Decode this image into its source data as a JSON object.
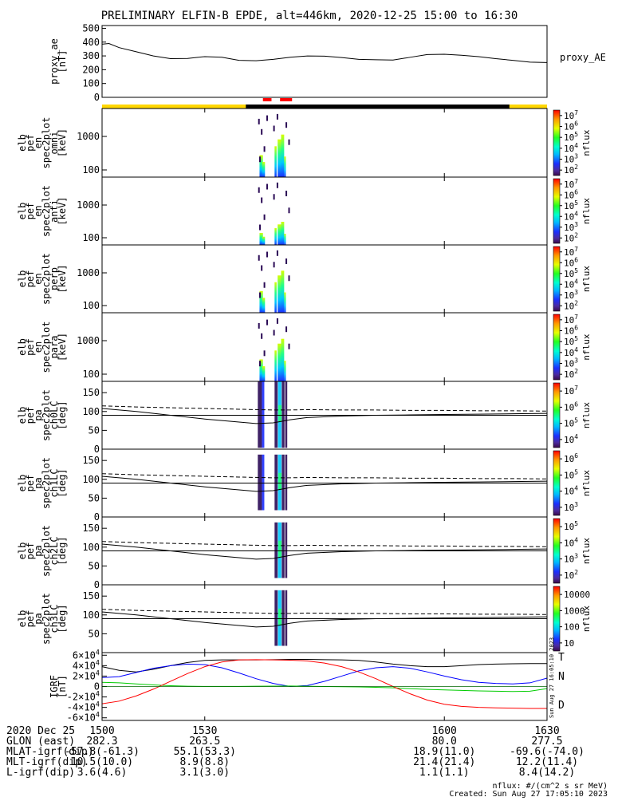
{
  "title": "PRELIMINARY ELFIN-B EPDE, alt=446km, 2020-12-25 15:00 to 16:30",
  "chart_data": [
    {
      "type": "line",
      "ylabel": [
        "proxy_ae",
        "[nT]"
      ],
      "yticks": [
        0,
        100,
        200,
        300,
        400,
        500
      ],
      "ylim": [
        0,
        520
      ],
      "series": [
        {
          "name": "proxy_AE",
          "x": [
            1500,
            1502,
            1505,
            1510,
            1515,
            1520,
            1525,
            1530,
            1535,
            1540,
            1545,
            1550,
            1555,
            1560,
            1565,
            1570,
            1575,
            1580,
            1585,
            1590,
            1595,
            1600,
            1605,
            1610,
            1615,
            1620,
            1625,
            1630
          ],
          "values": [
            385,
            390,
            360,
            330,
            300,
            280,
            282,
            295,
            290,
            268,
            265,
            275,
            290,
            300,
            298,
            288,
            275,
            272,
            270,
            290,
            310,
            312,
            305,
            295,
            280,
            268,
            255,
            252
          ]
        }
      ]
    },
    {
      "type": "heatmap",
      "ylabel": [
        "elb",
        "pef",
        "en",
        "spec2plot",
        "omni",
        "[keV]"
      ],
      "yticks": [
        "100",
        "1000"
      ],
      "colorbar": {
        "label": "nflux",
        "ticks": [
          "10^2",
          "10^3",
          "10^4",
          "10^5",
          "10^6",
          "10^7"
        ]
      }
    },
    {
      "type": "heatmap",
      "ylabel": [
        "elb",
        "pef",
        "en",
        "spec2plot",
        "anti",
        "[keV]"
      ],
      "yticks": [
        "100",
        "1000"
      ],
      "colorbar": {
        "label": "nflux",
        "ticks": [
          "10^2",
          "10^3",
          "10^4",
          "10^5",
          "10^6",
          "10^7"
        ]
      }
    },
    {
      "type": "heatmap",
      "ylabel": [
        "elb",
        "pef",
        "en",
        "spec2plot",
        "perp",
        "[keV]"
      ],
      "yticks": [
        "100",
        "1000"
      ],
      "colorbar": {
        "label": "nflux",
        "ticks": [
          "10^2",
          "10^3",
          "10^4",
          "10^5",
          "10^6",
          "10^7"
        ]
      }
    },
    {
      "type": "heatmap",
      "ylabel": [
        "elb",
        "pef",
        "en",
        "spec2plot",
        "para",
        "[keV]"
      ],
      "yticks": [
        "100",
        "1000"
      ],
      "colorbar": {
        "label": "nflux",
        "ticks": [
          "10^2",
          "10^3",
          "10^4",
          "10^5",
          "10^6",
          "10^7"
        ]
      }
    },
    {
      "type": "heatmap",
      "ylabel": [
        "elb",
        "pef",
        "pa",
        "spec2plot",
        "ch0LC",
        "[deg]"
      ],
      "yticks": [
        0,
        50,
        100,
        150
      ],
      "colorbar": {
        "label": "nflux",
        "ticks": [
          "10^4",
          "10^5",
          "10^6",
          "10^7"
        ]
      }
    },
    {
      "type": "heatmap",
      "ylabel": [
        "elb",
        "pef",
        "pa",
        "spec2plot",
        "ch1LC",
        "[deg]"
      ],
      "yticks": [
        0,
        50,
        100,
        150
      ],
      "colorbar": {
        "label": "nflux",
        "ticks": [
          "10^3",
          "10^4",
          "10^5",
          "10^6"
        ]
      }
    },
    {
      "type": "heatmap",
      "ylabel": [
        "elb",
        "pef",
        "pa",
        "spec2plot",
        "ch2LC",
        "[deg]"
      ],
      "yticks": [
        0,
        50,
        100,
        150
      ],
      "colorbar": {
        "label": "nflux",
        "ticks": [
          "10^2",
          "10^3",
          "10^4",
          "10^5"
        ]
      }
    },
    {
      "type": "heatmap",
      "ylabel": [
        "elb",
        "pef",
        "pa",
        "spec2plot",
        "ch3LC",
        "[deg]"
      ],
      "yticks": [
        50,
        100,
        150
      ],
      "colorbar": {
        "label": "nflux",
        "ticks": [
          "10",
          "100",
          "1000",
          "10000"
        ]
      }
    },
    {
      "type": "line",
      "ylabel": [
        "IGRF",
        "[nT]"
      ],
      "yticks": [
        "-6×10^4",
        "-4×10^4",
        "-2×10^4",
        "0",
        "2×10^4",
        "4×10^4",
        "6×10^4"
      ],
      "ylim": [
        -65000,
        65000
      ],
      "series": [
        {
          "name": "T",
          "color": "#000000",
          "x": [
            1500,
            1505,
            1510,
            1515,
            1520,
            1525,
            1530,
            1535,
            1540,
            1545,
            1550,
            1555,
            1560,
            1565,
            1570,
            1575,
            1580,
            1585,
            1590,
            1595,
            1600,
            1605,
            1610,
            1615,
            1620,
            1625,
            1630
          ],
          "values": [
            38000,
            31000,
            28000,
            33000,
            40000,
            46000,
            50000,
            51000,
            51000,
            51000,
            51500,
            52000,
            52000,
            51500,
            51000,
            50000,
            47000,
            43000,
            40000,
            38000,
            38000,
            40000,
            42000,
            43000,
            43500,
            44000,
            44000
          ]
        },
        {
          "name": "N",
          "color": "#0000ff",
          "x": [
            1500,
            1505,
            1510,
            1515,
            1520,
            1525,
            1530,
            1535,
            1540,
            1545,
            1550,
            1555,
            1560,
            1565,
            1570,
            1575,
            1580,
            1585,
            1590,
            1595,
            1600,
            1605,
            1610,
            1615,
            1620,
            1625,
            1630
          ],
          "values": [
            17000,
            19000,
            27000,
            35000,
            40000,
            43000,
            42000,
            36000,
            26000,
            15000,
            6000,
            0,
            2000,
            10000,
            20000,
            30000,
            36000,
            38000,
            35000,
            28000,
            20000,
            13000,
            8000,
            6000,
            5000,
            7000,
            16000
          ]
        },
        {
          "name": "",
          "color": "#00cc00",
          "x": [
            1500,
            1505,
            1510,
            1515,
            1520,
            1525,
            1530,
            1535,
            1540,
            1545,
            1550,
            1555,
            1560,
            1565,
            1570,
            1575,
            1580,
            1585,
            1590,
            1595,
            1600,
            1605,
            1610,
            1615,
            1620,
            1625,
            1630
          ],
          "values": [
            8000,
            7000,
            5000,
            3000,
            1500,
            500,
            100,
            100,
            200,
            500,
            800,
            1000,
            500,
            0,
            -300,
            -800,
            -1500,
            -2500,
            -4000,
            -5500,
            -6500,
            -7500,
            -8500,
            -9000,
            -9500,
            -9000,
            -4000
          ]
        },
        {
          "name": "D",
          "color": "#ff0000",
          "x": [
            1500,
            1505,
            1510,
            1515,
            1520,
            1525,
            1530,
            1535,
            1540,
            1545,
            1550,
            1555,
            1560,
            1565,
            1570,
            1575,
            1580,
            1585,
            1590,
            1595,
            1600,
            1605,
            1610,
            1615,
            1620,
            1625,
            1630
          ],
          "values": [
            -33000,
            -28000,
            -18000,
            -5000,
            10000,
            25000,
            38000,
            47000,
            51000,
            51500,
            51000,
            50500,
            49000,
            45000,
            38000,
            28000,
            15000,
            0,
            -14000,
            -26000,
            -34000,
            -38000,
            -40000,
            -41000,
            -41500,
            -42000,
            -42000
          ]
        }
      ]
    }
  ],
  "x_axis": {
    "ticks": [
      1500,
      1530,
      1600,
      1630
    ],
    "labels": [
      "1500",
      "1530",
      "1600",
      "1630"
    ],
    "range": [
      1500,
      1630
    ]
  },
  "ephemeris": {
    "date": "2020 Dec 25",
    "rows": [
      {
        "label": "GLON (east)",
        "values": [
          "282.3",
          "263.5",
          "80.0",
          "277.5"
        ]
      },
      {
        "label": "MLAT-igrf(dip)",
        "values": [
          "-57.8(-61.3)",
          "55.1(53.3)",
          "18.9(11.0)",
          "-69.6(-74.0)"
        ]
      },
      {
        "label": "MLT-igrf(dip)",
        "values": [
          "10.5(10.0)",
          "8.9(8.8)",
          "21.4(21.4)",
          "12.2(11.4)"
        ]
      },
      {
        "label": "L-igrf(dip)",
        "values": [
          "3.6(4.6)",
          "3.1(3.0)",
          "1.1(1.1)",
          "8.4(14.2)"
        ]
      }
    ]
  },
  "footer": {
    "units": "nflux: #/(cm^2 s sr MeV)",
    "created": "Created: Sun Aug 27 17:05:10 2023",
    "side_stamp": "Sun Aug 27 16:05:10 2023"
  },
  "colors": {
    "sunlit_bar": "#ffd700",
    "shadow_bar": "#000000",
    "marker": "#ff0000"
  }
}
